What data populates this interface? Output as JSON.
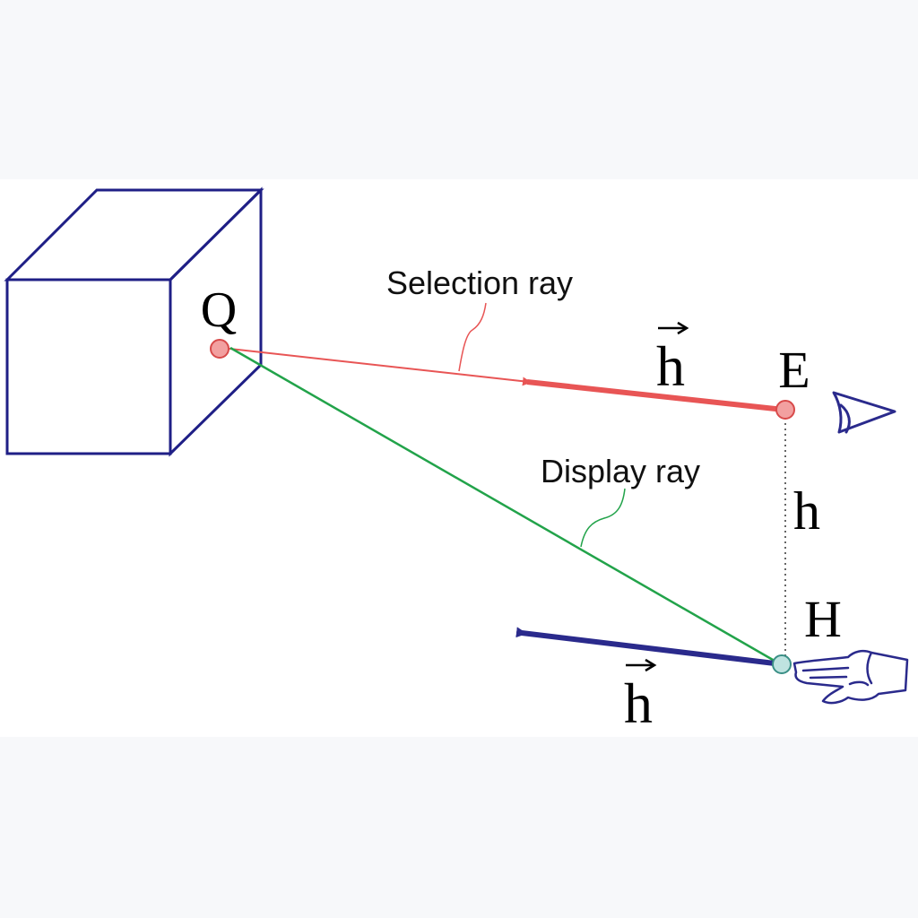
{
  "labels": {
    "point_q": "Q",
    "point_e": "E",
    "point_h": "H",
    "vector_h_top": "h",
    "vector_h_bottom": "h",
    "distance_h": "h",
    "selection_ray": "Selection ray",
    "display_ray": "Display ray"
  },
  "icons": {
    "eye": "eye-icon",
    "hand": "pointing-hand-icon"
  },
  "colors": {
    "page_band": "#f7f8fa",
    "panel": "#ffffff",
    "cube": "#1f1f86",
    "selection_ray": "#e85555",
    "display_ray": "#22a34a",
    "vector_blue": "#2a2a8c",
    "point_red_fill": "#f2a0a0",
    "point_red_stroke": "#d84a4a",
    "point_teal_fill": "#bfe3e0",
    "point_teal_stroke": "#3a8f86"
  }
}
